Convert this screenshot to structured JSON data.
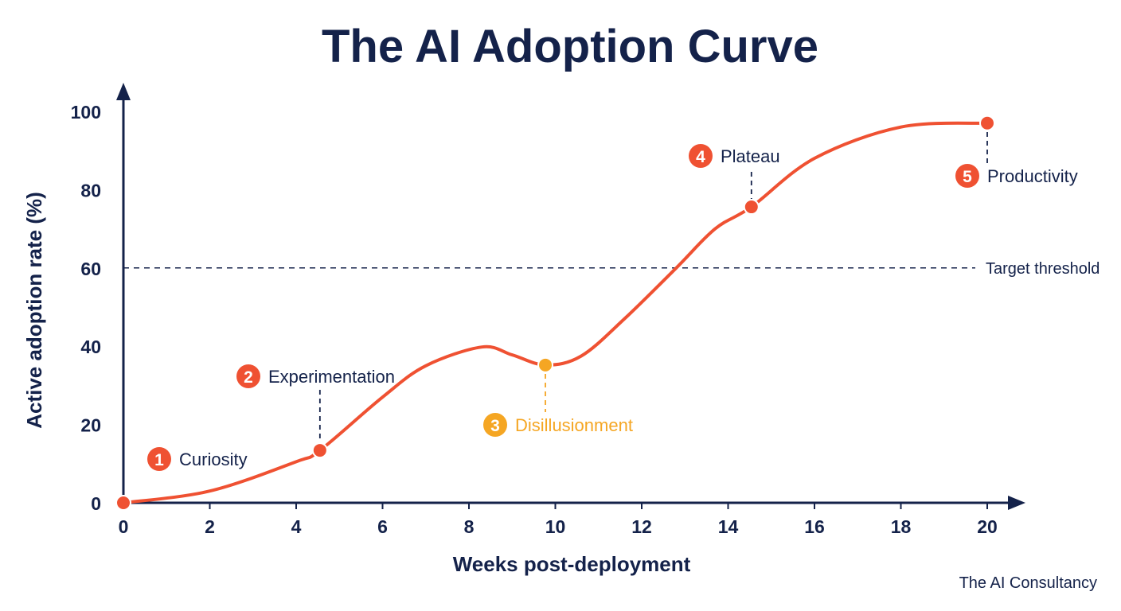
{
  "chart_data": {
    "type": "line",
    "title": "The AI Adoption Curve",
    "xlabel": "Weeks post-deployment",
    "ylabel": "Active adoption rate (%)",
    "xlim": [
      0,
      20
    ],
    "ylim": [
      0,
      100
    ],
    "xticks": [
      0,
      2,
      4,
      6,
      8,
      10,
      12,
      14,
      16,
      18,
      20
    ],
    "yticks": [
      0,
      20,
      40,
      60,
      80,
      100
    ],
    "grid": false,
    "series": [
      {
        "color": "#ef5132",
        "x": [
          0,
          2,
          4,
          4.55,
          6,
          7,
          8.3,
          9,
          9.77,
          10.6,
          11.6,
          12.8,
          13.7,
          14.54,
          16,
          18,
          20
        ],
        "y": [
          0,
          3,
          10.5,
          13.4,
          27,
          35,
          39.8,
          37.8,
          35.2,
          37.5,
          47,
          60,
          70,
          75.6,
          88,
          96,
          97
        ]
      }
    ],
    "reference_line": {
      "y": 60,
      "label": "Target threshold",
      "style": "dashed",
      "color": "#14224a"
    },
    "stages": [
      {
        "number": "1",
        "label": "Curiosity",
        "x": 0,
        "y": 0,
        "color": "#ef5132",
        "text_color": "#14224a"
      },
      {
        "number": "2",
        "label": "Experimentation",
        "x": 4.55,
        "y": 13.4,
        "color": "#ef5132",
        "text_color": "#14224a"
      },
      {
        "number": "3",
        "label": "Disillusionment",
        "x": 9.77,
        "y": 35.2,
        "color": "#f5a623",
        "text_color": "#f5a623"
      },
      {
        "number": "4",
        "label": "Plateau",
        "x": 14.54,
        "y": 75.6,
        "color": "#ef5132",
        "text_color": "#14224a"
      },
      {
        "number": "5",
        "label": "Productivity",
        "x": 20,
        "y": 97,
        "color": "#ef5132",
        "text_color": "#14224a"
      }
    ],
    "axis_color": "#14224a"
  },
  "footer": "The AI Consultancy"
}
